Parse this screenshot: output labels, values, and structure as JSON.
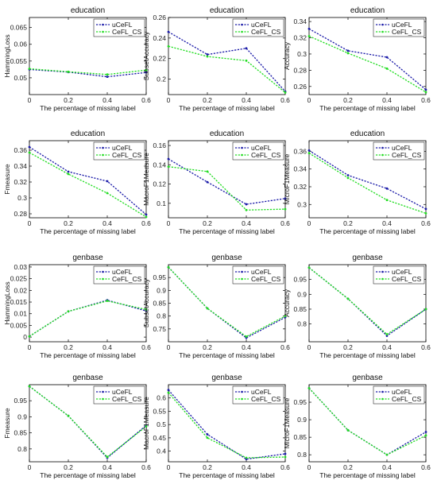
{
  "chart_data": [
    {
      "type": "line",
      "title": "education",
      "xlabel": "The percentage of missing label",
      "ylabel": "HammingLoss",
      "x": [
        0,
        0.2,
        0.4,
        0.6
      ],
      "xticks": [
        "0",
        "0.2",
        "0.4",
        "0.6"
      ],
      "ylim": [
        0.045,
        0.068
      ],
      "yticks": [
        "0.05",
        "0.055",
        "0.06",
        "0.065"
      ],
      "ytick_values": [
        0.05,
        0.055,
        0.06,
        0.065
      ],
      "series": [
        {
          "name": "uCeFL",
          "color": "#1a1aa8",
          "values": [
            0.0525,
            0.0517,
            0.0503,
            0.0516
          ]
        },
        {
          "name": "CeFL_CS",
          "color": "#22dd22",
          "values": [
            0.0527,
            0.0518,
            0.051,
            0.0523
          ]
        }
      ]
    },
    {
      "type": "line",
      "title": "education",
      "xlabel": "The percentage of missing label",
      "ylabel": "SubsetAccuracy",
      "x": [
        0,
        0.2,
        0.4,
        0.6
      ],
      "xticks": [
        "0",
        "0.2",
        "0.4",
        "0.6"
      ],
      "ylim": [
        0.185,
        0.26
      ],
      "yticks": [
        "0.2",
        "0.22",
        "0.24",
        "0.26"
      ],
      "ytick_values": [
        0.2,
        0.22,
        0.24,
        0.26
      ],
      "series": [
        {
          "name": "uCeFL",
          "color": "#1a1aa8",
          "values": [
            0.246,
            0.224,
            0.23,
            0.188
          ]
        },
        {
          "name": "CeFL_CS",
          "color": "#22dd22",
          "values": [
            0.232,
            0.222,
            0.218,
            0.187
          ]
        }
      ]
    },
    {
      "type": "line",
      "title": "education",
      "xlabel": "The percentage of missing label",
      "ylabel": "Accuracy",
      "x": [
        0,
        0.2,
        0.4,
        0.6
      ],
      "xticks": [
        "0",
        "0.2",
        "0.4",
        "0.6"
      ],
      "ylim": [
        0.25,
        0.345
      ],
      "yticks": [
        "0.26",
        "0.28",
        "0.3",
        "0.32",
        "0.34"
      ],
      "ytick_values": [
        0.26,
        0.28,
        0.3,
        0.32,
        0.34
      ],
      "series": [
        {
          "name": "uCeFL",
          "color": "#1a1aa8",
          "values": [
            0.331,
            0.304,
            0.296,
            0.256
          ]
        },
        {
          "name": "CeFL_CS",
          "color": "#22dd22",
          "values": [
            0.322,
            0.301,
            0.282,
            0.253
          ]
        }
      ]
    },
    {
      "type": "line",
      "title": "education",
      "xlabel": "The percentage of missing label",
      "ylabel": "Fmeasure",
      "x": [
        0,
        0.2,
        0.4,
        0.6
      ],
      "xticks": [
        "0",
        "0.2",
        "0.4",
        "0.6"
      ],
      "ylim": [
        0.275,
        0.372
      ],
      "yticks": [
        "0.28",
        "0.3",
        "0.32",
        "0.34",
        "0.36"
      ],
      "ytick_values": [
        0.28,
        0.3,
        0.32,
        0.34,
        0.36
      ],
      "series": [
        {
          "name": "uCeFL",
          "color": "#1a1aa8",
          "values": [
            0.364,
            0.333,
            0.321,
            0.279
          ]
        },
        {
          "name": "CeFL_CS",
          "color": "#22dd22",
          "values": [
            0.357,
            0.33,
            0.306,
            0.276
          ]
        }
      ]
    },
    {
      "type": "line",
      "title": "education",
      "xlabel": "The percentage of missing label",
      "ylabel": "MacroF1Measure",
      "x": [
        0,
        0.2,
        0.4,
        0.6
      ],
      "xticks": [
        "0",
        "0.2",
        "0.4",
        "0.6"
      ],
      "ylim": [
        0.085,
        0.165
      ],
      "yticks": [
        "0.1",
        "0.12",
        "0.14",
        "0.16"
      ],
      "ytick_values": [
        0.1,
        0.12,
        0.14,
        0.16
      ],
      "series": [
        {
          "name": "uCeFL",
          "color": "#1a1aa8",
          "values": [
            0.146,
            0.122,
            0.099,
            0.105
          ]
        },
        {
          "name": "CeFL_CS",
          "color": "#22dd22",
          "values": [
            0.138,
            0.133,
            0.093,
            0.094
          ]
        }
      ]
    },
    {
      "type": "line",
      "title": "education",
      "xlabel": "The percentage of missing label",
      "ylabel": "MicroF1Measure",
      "x": [
        0,
        0.2,
        0.4,
        0.6
      ],
      "xticks": [
        "0",
        "0.2",
        "0.4",
        "0.6"
      ],
      "ylim": [
        0.285,
        0.372
      ],
      "yticks": [
        "0.3",
        "0.32",
        "0.34",
        "0.36"
      ],
      "ytick_values": [
        0.3,
        0.32,
        0.34,
        0.36
      ],
      "series": [
        {
          "name": "uCeFL",
          "color": "#1a1aa8",
          "values": [
            0.361,
            0.333,
            0.318,
            0.295
          ]
        },
        {
          "name": "CeFL_CS",
          "color": "#22dd22",
          "values": [
            0.358,
            0.33,
            0.305,
            0.29
          ]
        }
      ]
    },
    {
      "type": "line",
      "title": "genbase",
      "xlabel": "The percentage of missing label",
      "ylabel": "HammingLoss",
      "x": [
        0,
        0.2,
        0.4,
        0.6
      ],
      "xticks": [
        "0",
        "0.2",
        "0.4",
        "0.6"
      ],
      "ylim": [
        -0.002,
        0.031
      ],
      "yticks": [
        "0",
        "0.005",
        "0.01",
        "0.015",
        "0.02",
        "0.025",
        "0.03"
      ],
      "ytick_values": [
        0,
        0.005,
        0.01,
        0.015,
        0.02,
        0.025,
        0.03
      ],
      "series": [
        {
          "name": "uCeFL",
          "color": "#1a1aa8",
          "values": [
            0.0003,
            0.011,
            0.0158,
            0.0112
          ]
        },
        {
          "name": "CeFL_CS",
          "color": "#22dd22",
          "values": [
            0.0003,
            0.011,
            0.0155,
            0.0118
          ]
        }
      ]
    },
    {
      "type": "line",
      "title": "genbase",
      "xlabel": "The percentage of missing label",
      "ylabel": "SubsetAccuracy",
      "x": [
        0,
        0.2,
        0.4,
        0.6
      ],
      "xticks": [
        "0",
        "0.2",
        "0.4",
        "0.6"
      ],
      "ylim": [
        0.7,
        1.0
      ],
      "yticks": [
        "0.75",
        "0.8",
        "0.85",
        "0.9",
        "0.95"
      ],
      "ytick_values": [
        0.75,
        0.8,
        0.85,
        0.9,
        0.95
      ],
      "series": [
        {
          "name": "uCeFL",
          "color": "#1a1aa8",
          "values": [
            0.99,
            0.83,
            0.715,
            0.795
          ]
        },
        {
          "name": "CeFL_CS",
          "color": "#22dd22",
          "values": [
            0.99,
            0.83,
            0.72,
            0.8
          ]
        }
      ]
    },
    {
      "type": "line",
      "title": "genbase",
      "xlabel": "The percentage of missing label",
      "ylabel": "Accuracy",
      "x": [
        0,
        0.2,
        0.4,
        0.6
      ],
      "xticks": [
        "0",
        "0.2",
        "0.4",
        "0.6"
      ],
      "ylim": [
        0.74,
        1.0
      ],
      "yticks": [
        "0.8",
        "0.85",
        "0.9",
        "0.95"
      ],
      "ytick_values": [
        0.8,
        0.85,
        0.9,
        0.95
      ],
      "series": [
        {
          "name": "uCeFL",
          "color": "#1a1aa8",
          "values": [
            0.99,
            0.885,
            0.76,
            0.85
          ]
        },
        {
          "name": "CeFL_CS",
          "color": "#22dd22",
          "values": [
            0.99,
            0.885,
            0.765,
            0.85
          ]
        }
      ]
    },
    {
      "type": "line",
      "title": "genbase",
      "xlabel": "The percentage of missing label",
      "ylabel": "Fmeasure",
      "x": [
        0,
        0.2,
        0.4,
        0.6
      ],
      "xticks": [
        "0",
        "0.2",
        "0.4",
        "0.6"
      ],
      "ylim": [
        0.76,
        1.0
      ],
      "yticks": [
        "0.8",
        "0.85",
        "0.9",
        "0.95"
      ],
      "ytick_values": [
        0.8,
        0.85,
        0.9,
        0.95
      ],
      "series": [
        {
          "name": "uCeFL",
          "color": "#1a1aa8",
          "values": [
            0.995,
            0.903,
            0.772,
            0.873
          ]
        },
        {
          "name": "CeFL_CS",
          "color": "#22dd22",
          "values": [
            0.995,
            0.903,
            0.775,
            0.87
          ]
        }
      ]
    },
    {
      "type": "line",
      "title": "genbase",
      "xlabel": "The percentage of missing label",
      "ylabel": "MacroF1Measure",
      "x": [
        0,
        0.2,
        0.4,
        0.6
      ],
      "xticks": [
        "0",
        "0.2",
        "0.4",
        "0.6"
      ],
      "ylim": [
        0.36,
        0.65
      ],
      "yticks": [
        "0.4",
        "0.45",
        "0.5",
        "0.55",
        "0.6"
      ],
      "ytick_values": [
        0.4,
        0.45,
        0.5,
        0.55,
        0.6
      ],
      "series": [
        {
          "name": "uCeFL",
          "color": "#1a1aa8",
          "values": [
            0.63,
            0.463,
            0.37,
            0.39
          ]
        },
        {
          "name": "CeFL_CS",
          "color": "#22dd22",
          "values": [
            0.62,
            0.45,
            0.375,
            0.378
          ]
        }
      ]
    },
    {
      "type": "line",
      "title": "genbase",
      "xlabel": "The percentage of missing label",
      "ylabel": "MicroF1Measure",
      "x": [
        0,
        0.2,
        0.4,
        0.6
      ],
      "xticks": [
        "0",
        "0.2",
        "0.4",
        "0.6"
      ],
      "ylim": [
        0.78,
        1.0
      ],
      "yticks": [
        "0.8",
        "0.85",
        "0.9",
        "0.95"
      ],
      "ytick_values": [
        0.8,
        0.85,
        0.9,
        0.95
      ],
      "series": [
        {
          "name": "uCeFL",
          "color": "#1a1aa8",
          "values": [
            0.99,
            0.87,
            0.8,
            0.865
          ]
        },
        {
          "name": "CeFL_CS",
          "color": "#22dd22",
          "values": [
            0.99,
            0.87,
            0.8,
            0.855
          ]
        }
      ]
    }
  ]
}
